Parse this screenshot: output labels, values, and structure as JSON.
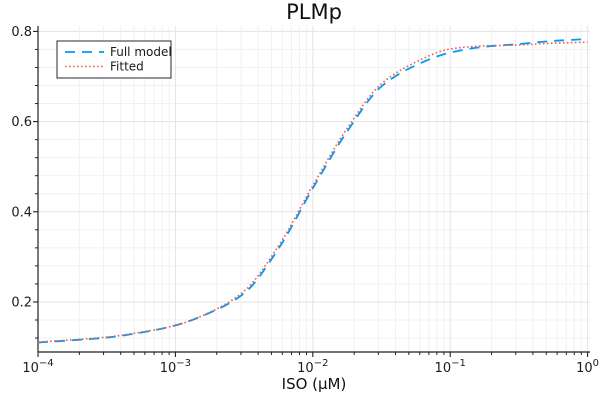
{
  "chart_data": {
    "type": "line",
    "title": "PLMp",
    "xlabel": "ISO (μM)",
    "ylabel": "",
    "x_scale": "log10",
    "xlim_log10": [
      -4,
      0
    ],
    "ylim": [
      0.089,
      0.812
    ],
    "x_tick_exponents": [
      -4,
      -3,
      -2,
      -1,
      0
    ],
    "x_tick_base": "10",
    "y_major_ticks": [
      0.2,
      0.4,
      0.6,
      0.8
    ],
    "y_tick_labels": [
      "0.2",
      "0.4",
      "0.6",
      "0.8"
    ],
    "y_minor_step": 0.04,
    "grid": true,
    "legend_position": "top-left",
    "series": [
      {
        "name": "Full model",
        "color": "#009afa",
        "line_style": "dash",
        "width": 1.8,
        "x_log10": [
          -4,
          -3.75,
          -3.5,
          -3.25,
          -3,
          -2.75,
          -2.5,
          -2.25,
          -2,
          -1.75,
          -1.5,
          -1.25,
          -1,
          -0.75,
          -0.5,
          -0.25,
          0
        ],
        "values": [
          0.11,
          0.115,
          0.121,
          0.132,
          0.148,
          0.176,
          0.219,
          0.318,
          0.452,
          0.578,
          0.678,
          0.725,
          0.753,
          0.766,
          0.772,
          0.779,
          0.783
        ]
      },
      {
        "name": "Fitted",
        "color": "#e8614b",
        "line_style": "dot",
        "width": 1.6,
        "x_log10": [
          -4,
          -3.75,
          -3.5,
          -3.25,
          -3,
          -2.75,
          -2.5,
          -2.25,
          -2,
          -1.75,
          -1.5,
          -1.25,
          -1,
          -0.75,
          -0.5,
          -0.25,
          0
        ],
        "values": [
          0.111,
          0.116,
          0.122,
          0.133,
          0.148,
          0.177,
          0.224,
          0.324,
          0.458,
          0.585,
          0.684,
          0.732,
          0.761,
          0.768,
          0.77,
          0.774,
          0.776
        ]
      }
    ],
    "colors": {
      "grid_major": "#e3e3ea",
      "grid_minor": "#f1f1f5",
      "axis": "#222222",
      "tick_text": "#1c1c1c",
      "legend_border": "#26282d",
      "legend_bg": "#ffffff",
      "background": "#ffffff"
    }
  }
}
